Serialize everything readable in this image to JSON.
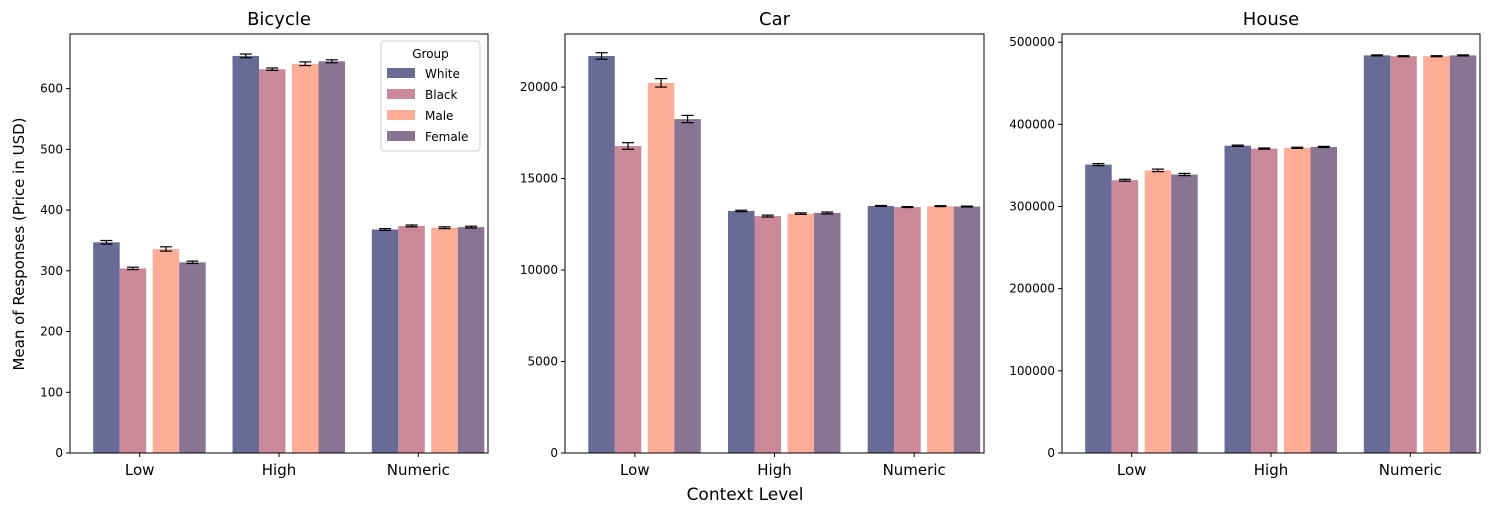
{
  "figure": {
    "shared_ylabel": "Mean of Responses (Price in USD)",
    "shared_xlabel": "Context Level"
  },
  "legend": {
    "title": "Group",
    "placement": "top-right of first panel"
  },
  "chart_data": [
    {
      "type": "bar",
      "title": "Bicycle",
      "categories": [
        "Low",
        "High",
        "Numeric"
      ],
      "ylim": [
        0,
        690
      ],
      "yticks": [
        0,
        100,
        200,
        300,
        400,
        500,
        600
      ],
      "ytick_labels": [
        "0",
        "100",
        "200",
        "300",
        "400",
        "500",
        "600"
      ],
      "grid": false,
      "series": [
        {
          "name": "White",
          "color": "#676b95",
          "values": [
            347,
            654,
            368
          ],
          "err": [
            3,
            3,
            1.5
          ]
        },
        {
          "name": "Black",
          "color": "#cb8899",
          "values": [
            304,
            632,
            374
          ],
          "err": [
            2,
            2,
            1.5
          ]
        },
        {
          "name": "Male",
          "color": "#fead96",
          "values": [
            336,
            641,
            371
          ],
          "err": [
            3.5,
            3,
            1.5
          ]
        },
        {
          "name": "Female",
          "color": "#8a7494",
          "values": [
            314,
            645,
            372
          ],
          "err": [
            2,
            2.5,
            1.5
          ]
        }
      ]
    },
    {
      "type": "bar",
      "title": "Car",
      "categories": [
        "Low",
        "High",
        "Numeric"
      ],
      "ylim": [
        0,
        22900
      ],
      "yticks": [
        0,
        5000,
        10000,
        15000,
        20000
      ],
      "ytick_labels": [
        "0",
        "5000",
        "10000",
        "15000",
        "20000"
      ],
      "grid": false,
      "series": [
        {
          "name": "White",
          "color": "#676b95",
          "values": [
            21700,
            13230,
            13500
          ],
          "err": [
            180,
            40,
            25
          ]
        },
        {
          "name": "Black",
          "color": "#cb8899",
          "values": [
            16780,
            12950,
            13440
          ],
          "err": [
            180,
            50,
            25
          ]
        },
        {
          "name": "Male",
          "color": "#fead96",
          "values": [
            20230,
            13080,
            13490
          ],
          "err": [
            230,
            40,
            25
          ]
        },
        {
          "name": "Female",
          "color": "#8a7494",
          "values": [
            18250,
            13120,
            13470
          ],
          "err": [
            200,
            50,
            25
          ]
        }
      ]
    },
    {
      "type": "bar",
      "title": "House",
      "categories": [
        "Low",
        "High",
        "Numeric"
      ],
      "ylim": [
        0,
        510000
      ],
      "yticks": [
        0,
        100000,
        200000,
        300000,
        400000,
        500000
      ],
      "ytick_labels": [
        "0",
        "100000",
        "200000",
        "300000",
        "400000",
        "500000"
      ],
      "grid": false,
      "series": [
        {
          "name": "White",
          "color": "#676b95",
          "values": [
            351000,
            374000,
            484000
          ],
          "err": [
            1200,
            800,
            600
          ]
        },
        {
          "name": "Black",
          "color": "#cb8899",
          "values": [
            332000,
            370500,
            483000
          ],
          "err": [
            1200,
            700,
            600
          ]
        },
        {
          "name": "Male",
          "color": "#fead96",
          "values": [
            344000,
            371500,
            483000
          ],
          "err": [
            1500,
            700,
            600
          ]
        },
        {
          "name": "Female",
          "color": "#8a7494",
          "values": [
            339000,
            372500,
            484000
          ],
          "err": [
            1300,
            700,
            600
          ]
        }
      ]
    }
  ]
}
